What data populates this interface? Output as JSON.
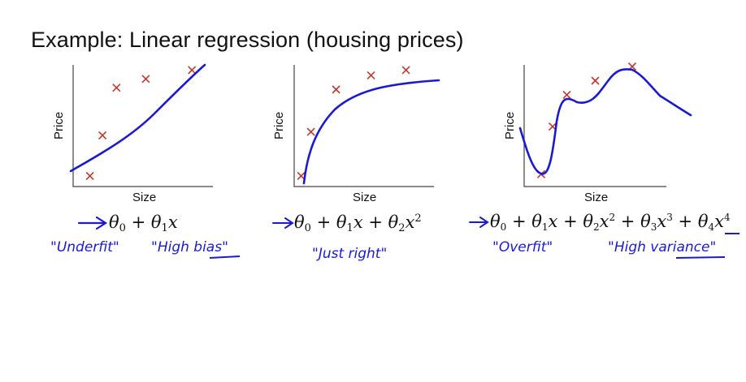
{
  "title": "Example: Linear regression (housing prices)",
  "chart_data": [
    {
      "type": "scatter",
      "xlabel": "Size",
      "ylabel": "Price",
      "points": [
        [
          1.2,
          0.6
        ],
        [
          2.1,
          2.9
        ],
        [
          3.1,
          5.6
        ],
        [
          5.2,
          6.1
        ],
        [
          8.5,
          6.6
        ]
      ],
      "fit": "linear",
      "formula": "θ0 + θ1x",
      "annotations": [
        "\"Underfit\"",
        "\"High bias\""
      ],
      "colors": {
        "points": "#c0392b",
        "fit": "#1a1ad0",
        "annotation": "#1a1ad0"
      }
    },
    {
      "type": "scatter",
      "xlabel": "Size",
      "ylabel": "Price",
      "points": [
        [
          0.5,
          0.6
        ],
        [
          1.2,
          3.1
        ],
        [
          3.0,
          5.5
        ],
        [
          5.5,
          6.3
        ],
        [
          8.0,
          6.6
        ]
      ],
      "fit": "quadratic",
      "formula": "θ0 + θ1x + θ2x2",
      "annotations": [
        "\"Just right\""
      ],
      "colors": {
        "points": "#c0392b",
        "fit": "#1a1ad0",
        "annotation": "#1a1ad0"
      }
    },
    {
      "type": "scatter",
      "xlabel": "Size",
      "ylabel": "Price",
      "points": [
        [
          1.2,
          0.7
        ],
        [
          2.0,
          3.4
        ],
        [
          3.0,
          5.2
        ],
        [
          5.0,
          6.0
        ],
        [
          7.6,
          6.8
        ]
      ],
      "fit": "polynomial-4",
      "formula": "θ0 + θ1x + θ2x2 + θ3x3 + θ4x4",
      "annotations": [
        "\"Overfit\"",
        "\"High variance\""
      ],
      "colors": {
        "points": "#c0392b",
        "fit": "#1a1ad0",
        "annotation": "#1a1ad0"
      }
    }
  ]
}
